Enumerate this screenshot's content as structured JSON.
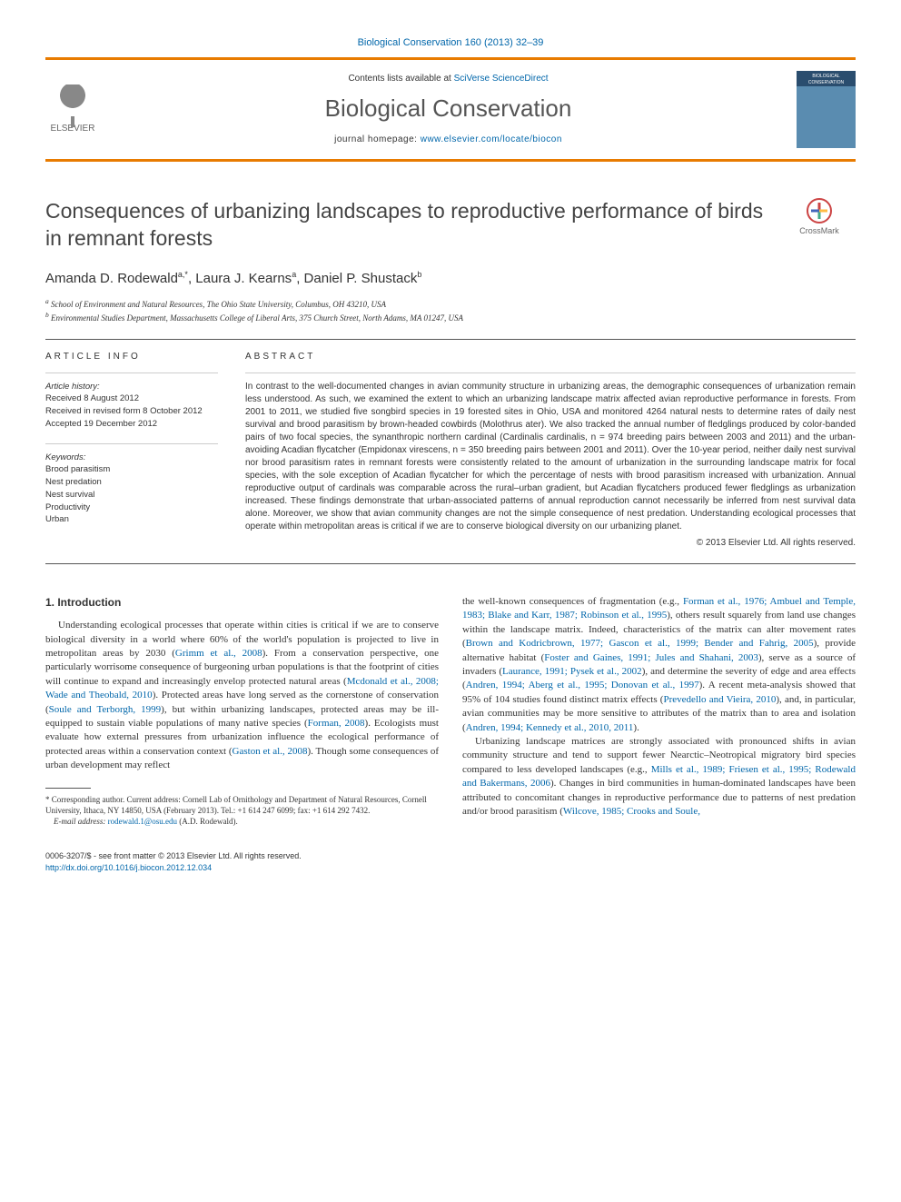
{
  "journal_ref": "Biological Conservation 160 (2013) 32–39",
  "header": {
    "publisher_name": "ELSEVIER",
    "contents_prefix": "Contents lists available at ",
    "contents_link": "SciVerse ScienceDirect",
    "journal_title": "Biological Conservation",
    "homepage_prefix": "journal homepage: ",
    "homepage_link": "www.elsevier.com/locate/biocon",
    "cover_label": "BIOLOGICAL CONSERVATION"
  },
  "crossmark_label": "CrossMark",
  "article_title": "Consequences of urbanizing landscapes to reproductive performance of birds in remnant forests",
  "authors_html": "Amanda D. Rodewald",
  "authors": [
    {
      "name": "Amanda D. Rodewald",
      "sup": "a,*"
    },
    {
      "name": "Laura J. Kearns",
      "sup": "a"
    },
    {
      "name": "Daniel P. Shustack",
      "sup": "b"
    }
  ],
  "affiliations": [
    {
      "sup": "a",
      "text": "School of Environment and Natural Resources, The Ohio State University, Columbus, OH 43210, USA"
    },
    {
      "sup": "b",
      "text": "Environmental Studies Department, Massachusetts College of Liberal Arts, 375 Church Street, North Adams, MA 01247, USA"
    }
  ],
  "article_info": {
    "heading": "ARTICLE INFO",
    "history_label": "Article history:",
    "received": "Received 8 August 2012",
    "revised": "Received in revised form 8 October 2012",
    "accepted": "Accepted 19 December 2012",
    "keywords_label": "Keywords:",
    "keywords": [
      "Brood parasitism",
      "Nest predation",
      "Nest survival",
      "Productivity",
      "Urban"
    ]
  },
  "abstract": {
    "heading": "ABSTRACT",
    "text": "In contrast to the well-documented changes in avian community structure in urbanizing areas, the demographic consequences of urbanization remain less understood. As such, we examined the extent to which an urbanizing landscape matrix affected avian reproductive performance in forests. From 2001 to 2011, we studied five songbird species in 19 forested sites in Ohio, USA and monitored 4264 natural nests to determine rates of daily nest survival and brood parasitism by brown-headed cowbirds (Molothrus ater). We also tracked the annual number of fledglings produced by color-banded pairs of two focal species, the synanthropic northern cardinal (Cardinalis cardinalis, n = 974 breeding pairs between 2003 and 2011) and the urban-avoiding Acadian flycatcher (Empidonax virescens, n = 350 breeding pairs between 2001 and 2011). Over the 10-year period, neither daily nest survival nor brood parasitism rates in remnant forests were consistently related to the amount of urbanization in the surrounding landscape matrix for focal species, with the sole exception of Acadian flycatcher for which the percentage of nests with brood parasitism increased with urbanization. Annual reproductive output of cardinals was comparable across the rural–urban gradient, but Acadian flycatchers produced fewer fledglings as urbanization increased. These findings demonstrate that urban-associated patterns of annual reproduction cannot necessarily be inferred from nest survival data alone. Moreover, we show that avian community changes are not the simple consequence of nest predation. Understanding ecological processes that operate within metropolitan areas is critical if we are to conserve biological diversity on our urbanizing planet.",
    "copyright": "© 2013 Elsevier Ltd. All rights reserved."
  },
  "section1": {
    "heading": "1. Introduction",
    "para1_pre": "Understanding ecological processes that operate within cities is critical if we are to conserve biological diversity in a world where 60% of the world's population is projected to live in metropolitan areas by 2030 (",
    "cite1": "Grimm et al., 2008",
    "para1_mid1": "). From a conservation perspective, one particularly worrisome consequence of burgeoning urban populations is that the footprint of cities will continue to expand and increasingly envelop protected natural areas (",
    "cite2": "Mcdonald et al., 2008; Wade and Theobald, 2010",
    "para1_mid2": "). Protected areas have long served as the cornerstone of conservation (",
    "cite3": "Soule and Terborgh, 1999",
    "para1_mid3": "), but within urbanizing landscapes, protected areas may be ill-equipped to sustain viable populations of many native species (",
    "cite4": "Forman, 2008",
    "para1_mid4": "). Ecologists must evaluate how external pressures from urbanization influence the ecological performance of protected areas within a conservation context (",
    "cite5": "Gaston et al., 2008",
    "para1_end": "). Though some consequences of urban development may reflect",
    "col2_pre": "the well-known consequences of fragmentation (e.g., ",
    "cite6": "Forman et al., 1976; Ambuel and Temple, 1983; Blake and Karr, 1987; Robinson et al., 1995",
    "col2_mid1": "), others result squarely from land use changes within the landscape matrix. Indeed, characteristics of the matrix can alter movement rates (",
    "cite7": "Brown and Kodricbrown, 1977; Gascon et al., 1999; Bender and Fahrig, 2005",
    "col2_mid2": "), provide alternative habitat (",
    "cite8": "Foster and Gaines, 1991; Jules and Shahani, 2003",
    "col2_mid3": "), serve as a source of invaders (",
    "cite9": "Laurance, 1991; Pysek et al., 2002",
    "col2_mid4": "), and determine the severity of edge and area effects (",
    "cite10": "Andren, 1994; Aberg et al., 1995; Donovan et al., 1997",
    "col2_mid5": "). A recent meta-analysis showed that 95% of 104 studies found distinct matrix effects (",
    "cite11": "Prevedello and Vieira, 2010",
    "col2_mid6": "), and, in particular, avian communities may be more sensitive to attributes of the matrix than to area and isolation (",
    "cite12": "Andren, 1994; Kennedy et al., 2010, 2011",
    "col2_mid7": ").",
    "col2_p2_pre": "Urbanizing landscape matrices are strongly associated with pronounced shifts in avian community structure and tend to support fewer Nearctic–Neotropical migratory bird species compared to less developed landscapes (e.g., ",
    "cite13": "Mills et al., 1989; Friesen et al., 1995; Rodewald and Bakermans, 2006",
    "col2_p2_mid1": "). Changes in bird communities in human-dominated landscapes have been attributed to concomitant changes in reproductive performance due to patterns of nest predation and/or brood parasitism (",
    "cite14": "Wilcove, 1985; Crooks and Soule,",
    "col2_p2_end": ""
  },
  "footnotes": {
    "corr_sym": "*",
    "corr_text": " Corresponding author. Current address: Cornell Lab of Ornithology and Department of Natural Resources, Cornell University, Ithaca, NY 14850, USA (February 2013). Tel.: +1 614 247 6099; fax: +1 614 292 7432.",
    "email_label": "E-mail address:",
    "email": "rodewald.1@osu.edu",
    "email_paren": " (A.D. Rodewald)."
  },
  "bottom": {
    "issn": "0006-3207/$ - see front matter © 2013 Elsevier Ltd. All rights reserved.",
    "doi": "http://dx.doi.org/10.1016/j.biocon.2012.12.034"
  }
}
